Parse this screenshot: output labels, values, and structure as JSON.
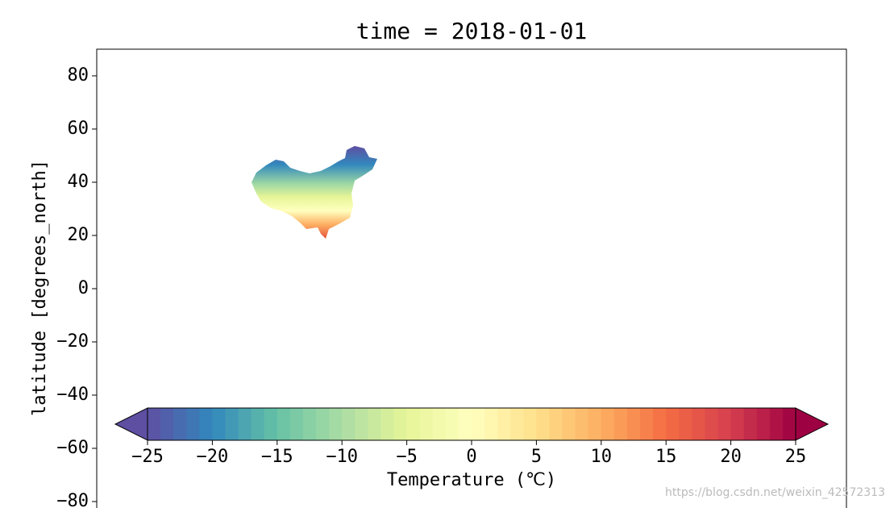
{
  "chart_data": {
    "type": "map",
    "title": "time = 2018-01-01",
    "y_label": "latitude [degrees_north]",
    "ylim": [
      -90,
      90
    ],
    "yticks": [
      {
        "value": -80,
        "label": "−80"
      },
      {
        "value": -60,
        "label": "−60"
      },
      {
        "value": -40,
        "label": "−40"
      },
      {
        "value": -20,
        "label": "−20"
      },
      0,
      20,
      40,
      60,
      80
    ],
    "colorbar": {
      "label": "Temperature (℃)",
      "clim": [
        -25,
        25
      ],
      "levels": 50,
      "extend": "both",
      "colormap": [
        "#5e4fa2",
        "#3288bd",
        "#66c2a5",
        "#abdda4",
        "#e6f598",
        "#ffffbf",
        "#fee08b",
        "#fdae61",
        "#f46d43",
        "#d53e4f",
        "#9e0142"
      ],
      "ticks": [
        {
          "value": -25,
          "label": "−25"
        },
        {
          "value": -20,
          "label": "−20"
        },
        {
          "value": -15,
          "label": "−15"
        },
        {
          "value": -10,
          "label": "−10"
        },
        {
          "value": -5,
          "label": "−5"
        },
        0,
        5,
        10,
        15,
        20,
        25
      ]
    },
    "watermark": "https://blog.csdn.net/weixin_42572313"
  }
}
